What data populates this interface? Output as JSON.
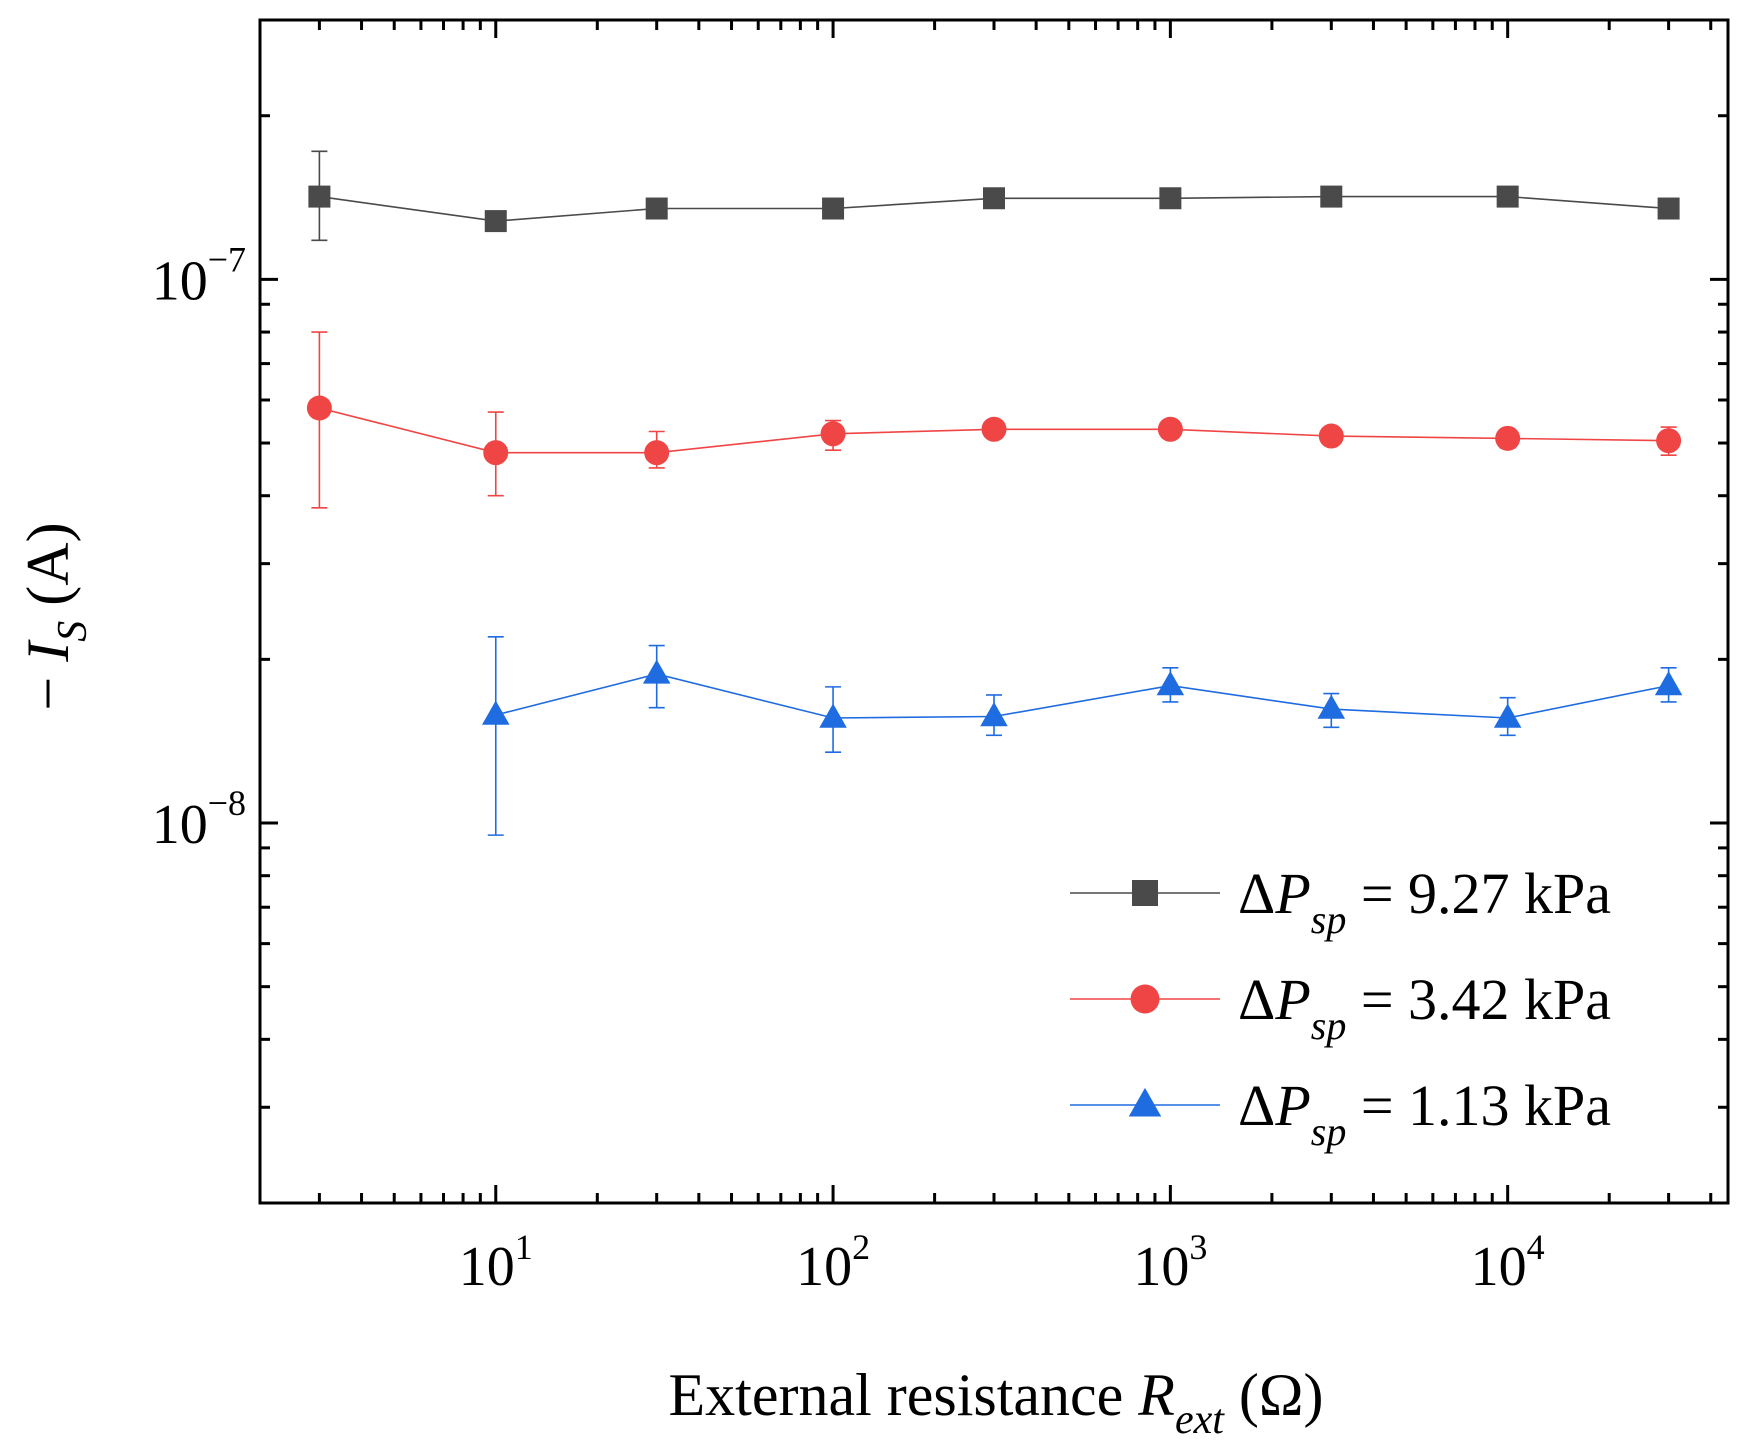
{
  "chart_data": {
    "type": "line",
    "xscale": "log",
    "yscale": "log",
    "xlim": [
      2,
      45000
    ],
    "ylim": [
      2e-09,
      3e-07
    ],
    "xlabel": {
      "prefix": "External resistance ",
      "symbol": "R",
      "subscript": "ext",
      "suffix": " (Ω)"
    },
    "ylabel": {
      "prefix": "− ",
      "symbol": "I",
      "subscript": "S",
      "suffix": " (A)"
    },
    "x_ticks": [
      {
        "value": 10,
        "base": "10",
        "exp": "1"
      },
      {
        "value": 100,
        "base": "10",
        "exp": "2"
      },
      {
        "value": 1000,
        "base": "10",
        "exp": "3"
      },
      {
        "value": 10000,
        "base": "10",
        "exp": "4"
      }
    ],
    "y_ticks": [
      {
        "value": 1e-07,
        "base": "10",
        "exp": "−7"
      },
      {
        "value": 1e-08,
        "base": "10",
        "exp": "−8"
      }
    ],
    "legend_position": "bottom-right",
    "series": [
      {
        "name": "ΔP_sp = 9.27 kPa",
        "label": {
          "delta": "Δ",
          "symbol": "P",
          "subscript": "sp",
          "value": " = 9.27 kPa"
        },
        "color": "#4a4a4a",
        "marker": "square",
        "x": [
          3,
          10,
          30,
          100,
          300,
          1000,
          3000,
          10000,
          30000
        ],
        "y": [
          1.42e-07,
          1.28e-07,
          1.35e-07,
          1.35e-07,
          1.41e-07,
          1.41e-07,
          1.42e-07,
          1.42e-07,
          1.35e-07
        ],
        "err": [
          [
            1.18e-07,
            1.72e-07
          ],
          [
            1.24e-07,
            1.33e-07
          ],
          null,
          null,
          null,
          null,
          null,
          null,
          null
        ]
      },
      {
        "name": "ΔP_sp = 3.42 kPa",
        "label": {
          "delta": "Δ",
          "symbol": "P",
          "subscript": "sp",
          "value": " = 3.42 kPa"
        },
        "color": "#f04545",
        "marker": "circle",
        "x": [
          3,
          10,
          30,
          100,
          300,
          1000,
          3000,
          10000,
          30000
        ],
        "y": [
          5.8e-08,
          4.8e-08,
          4.8e-08,
          5.2e-08,
          5.3e-08,
          5.3e-08,
          5.15e-08,
          5.1e-08,
          5.05e-08
        ],
        "err": [
          [
            3.8e-08,
            8e-08
          ],
          [
            4e-08,
            5.7e-08
          ],
          [
            4.5e-08,
            5.25e-08
          ],
          [
            4.85e-08,
            5.5e-08
          ],
          null,
          null,
          null,
          [
            4.9e-08,
            5.3e-08
          ],
          [
            4.75e-08,
            5.35e-08
          ]
        ]
      },
      {
        "name": "ΔP_sp = 1.13 kPa",
        "label": {
          "delta": "Δ",
          "symbol": "P",
          "subscript": "sp",
          "value": " = 1.13 kPa"
        },
        "color": "#1f6be0",
        "marker": "triangle",
        "x": [
          10,
          30,
          100,
          300,
          1000,
          3000,
          10000,
          30000
        ],
        "y": [
          1.58e-08,
          1.88e-08,
          1.56e-08,
          1.57e-08,
          1.79e-08,
          1.62e-08,
          1.56e-08,
          1.79e-08
        ],
        "err": [
          [
            9.5e-09,
            2.2e-08
          ],
          [
            1.63e-08,
            2.12e-08
          ],
          [
            1.35e-08,
            1.78e-08
          ],
          [
            1.45e-08,
            1.72e-08
          ],
          [
            1.67e-08,
            1.93e-08
          ],
          [
            1.5e-08,
            1.73e-08
          ],
          [
            1.45e-08,
            1.7e-08
          ],
          [
            1.67e-08,
            1.93e-08
          ]
        ]
      }
    ]
  }
}
